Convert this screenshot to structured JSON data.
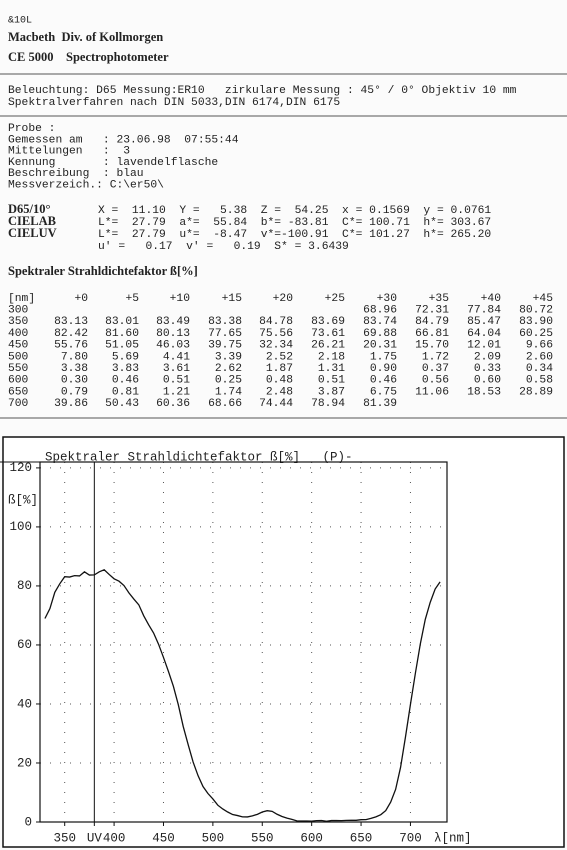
{
  "header": {
    "code": "&10L",
    "company": "Macbeth  Div. of Kollmorgen",
    "instrument": "CE 5000    Spectrophotometer"
  },
  "settings": [
    "Beleuchtung: D65 Messung:ER10   zirkulare Messung : 45° / 0° Objektiv 10 mm",
    "Spektralverfahren nach DIN 5033,DIN 6174,DIN 6175"
  ],
  "sample": [
    "Probe :",
    "Gemessen am   : 23.06.98  07:55:44",
    "Mittelungen   :  3",
    "Kennung       : lavendelflasche",
    "Beschreibung  : blau",
    "Messverzeich.: C:\\er50\\"
  ],
  "colorimetry": [
    {
      "label": "D65/10°",
      "text": "X =  11.10  Y =   5.38  Z =  54.25  x = 0.1569  y = 0.0761"
    },
    {
      "label": "CIELAB",
      "text": "L*=  27.79  a*=  55.84  b*= -83.81  C*= 100.71  h*= 303.67"
    },
    {
      "label": "CIELUV",
      "text": "L*=  27.79  u*=  -8.47  v*=-100.91  C*= 101.27  h*= 265.20"
    },
    {
      "text": "u' =   0.17  v' =   0.19  S* = 3.6439"
    }
  ],
  "table": {
    "title": "Spektraler Strahldichtefaktor ß[%]",
    "header": [
      "[nm]",
      "+0",
      "+5",
      "+10",
      "+15",
      "+20",
      "+25",
      "+30",
      "+35",
      "+40",
      "+45"
    ],
    "rows": [
      [
        "300",
        null,
        null,
        null,
        null,
        null,
        null,
        "68.96",
        "72.31",
        "77.84",
        "80.72"
      ],
      [
        "350",
        "83.13",
        "83.01",
        "83.49",
        "83.38",
        "84.78",
        "83.69",
        "83.74",
        "84.79",
        "85.47",
        "83.90"
      ],
      [
        "400",
        "82.42",
        "81.60",
        "80.13",
        "77.65",
        "75.56",
        "73.61",
        "69.88",
        "66.81",
        "64.04",
        "60.25"
      ],
      [
        "450",
        "55.76",
        "51.05",
        "46.03",
        "39.75",
        "32.34",
        "26.21",
        "20.31",
        "15.70",
        "12.01",
        "9.66"
      ],
      [
        "500",
        "7.80",
        "5.69",
        "4.41",
        "3.39",
        "2.52",
        "2.18",
        "1.75",
        "1.72",
        "2.09",
        "2.60"
      ],
      [
        "550",
        "3.38",
        "3.83",
        "3.61",
        "2.62",
        "1.87",
        "1.31",
        "0.90",
        "0.37",
        "0.33",
        "0.34"
      ],
      [
        "600",
        "0.30",
        "0.46",
        "0.51",
        "0.25",
        "0.48",
        "0.51",
        "0.46",
        "0.56",
        "0.60",
        "0.58"
      ],
      [
        "650",
        "0.79",
        "0.81",
        "1.21",
        "1.74",
        "2.48",
        "3.87",
        "6.75",
        "11.06",
        "18.53",
        "28.89"
      ],
      [
        "700",
        "39.86",
        "50.43",
        "60.36",
        "68.66",
        "74.44",
        "78.94",
        "81.39",
        null,
        null,
        null
      ]
    ]
  },
  "chart_data": {
    "type": "line",
    "title": "Spektraler Strahldichtefaktor ß[%]   (P)-",
    "y_label": "ß[%]",
    "x_label": "λ[nm]",
    "color": "#111111",
    "grid": true,
    "x": [
      330,
      335,
      340,
      345,
      350,
      355,
      360,
      365,
      370,
      375,
      380,
      385,
      390,
      395,
      400,
      405,
      410,
      415,
      420,
      425,
      430,
      435,
      440,
      445,
      450,
      455,
      460,
      465,
      470,
      475,
      480,
      485,
      490,
      495,
      500,
      505,
      510,
      515,
      520,
      525,
      530,
      535,
      540,
      545,
      550,
      555,
      560,
      565,
      570,
      575,
      580,
      585,
      590,
      595,
      600,
      605,
      610,
      615,
      620,
      625,
      630,
      635,
      640,
      645,
      650,
      655,
      660,
      665,
      670,
      675,
      680,
      685,
      690,
      695,
      700,
      705,
      710,
      715,
      720,
      725,
      730
    ],
    "values": [
      68.96,
      72.31,
      77.84,
      80.72,
      83.13,
      83.01,
      83.49,
      83.38,
      84.78,
      83.69,
      83.74,
      84.79,
      85.47,
      83.9,
      82.42,
      81.6,
      80.13,
      77.65,
      75.56,
      73.61,
      69.88,
      66.81,
      64.04,
      60.25,
      55.76,
      51.05,
      46.03,
      39.75,
      32.34,
      26.21,
      20.31,
      15.7,
      12.01,
      9.66,
      7.8,
      5.69,
      4.41,
      3.39,
      2.52,
      2.18,
      1.75,
      1.72,
      2.09,
      2.6,
      3.38,
      3.83,
      3.61,
      2.62,
      1.87,
      1.31,
      0.9,
      0.37,
      0.33,
      0.34,
      0.3,
      0.46,
      0.51,
      0.25,
      0.48,
      0.51,
      0.46,
      0.56,
      0.6,
      0.58,
      0.79,
      0.81,
      1.21,
      1.74,
      2.48,
      3.87,
      6.75,
      11.06,
      18.53,
      28.89,
      39.86,
      50.43,
      60.36,
      68.66,
      74.44,
      78.94,
      81.39
    ],
    "xlim": [
      325,
      737
    ],
    "ylim": [
      0,
      122
    ],
    "xticks": [
      350,
      {
        "value": 380,
        "label": "UV"
      },
      400,
      450,
      500,
      550,
      600,
      650,
      700
    ],
    "yticks": [
      0,
      20,
      40,
      60,
      80,
      100,
      120
    ]
  }
}
